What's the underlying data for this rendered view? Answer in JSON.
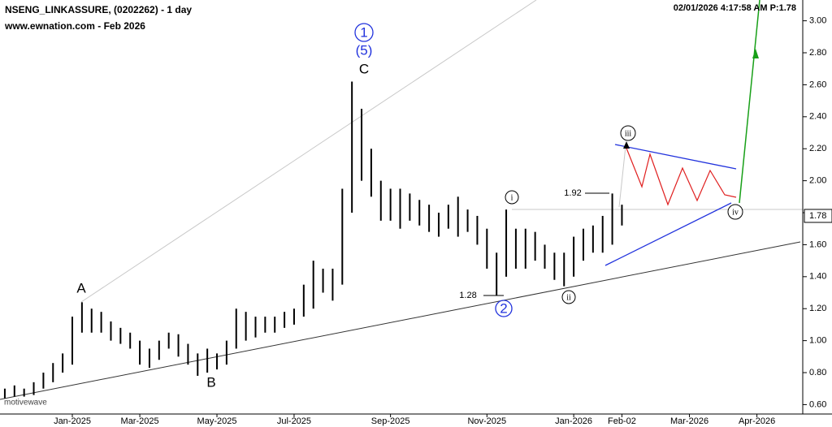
{
  "chart_data": {
    "type": "range-bar",
    "title": "NSENG_LINKASSURE, (0202262) - 1 day",
    "subtitle": "www.ewnation.com  - Feb 2026",
    "timestamp": "02/01/2026 4:17:58 AM  P:1.78",
    "watermark": "motivewave",
    "last_price": {
      "value": 1.78,
      "label": "1.78"
    },
    "categories": [
      null,
      null,
      null,
      null,
      null,
      null,
      null,
      "Jan-2025",
      null,
      null,
      null,
      null,
      null,
      null,
      "Mar-2025",
      null,
      null,
      null,
      null,
      null,
      null,
      null,
      "May-2025",
      null,
      null,
      null,
      null,
      null,
      null,
      null,
      "Jul-2025",
      null,
      null,
      null,
      null,
      null,
      null,
      null,
      null,
      null,
      "Sep-2025",
      null,
      null,
      null,
      null,
      null,
      null,
      null,
      null,
      null,
      "Nov-2025",
      null,
      null,
      null,
      null,
      null,
      null,
      null,
      null,
      "Jan-2026",
      null,
      null,
      null,
      null,
      "Feb-02",
      null,
      null,
      null,
      null,
      null,
      null,
      "Mar-2026",
      null,
      null,
      null,
      null,
      null,
      null,
      "Apr-2026",
      null,
      null,
      null,
      null
    ],
    "high": [
      0.7,
      0.72,
      0.7,
      0.74,
      0.8,
      0.86,
      0.92,
      1.15,
      1.24,
      1.2,
      1.18,
      1.12,
      1.08,
      1.05,
      1.0,
      0.95,
      1.0,
      1.05,
      1.04,
      0.98,
      0.92,
      0.95,
      0.92,
      1.0,
      1.2,
      1.18,
      1.15,
      1.15,
      1.15,
      1.18,
      1.2,
      1.35,
      1.5,
      1.45,
      1.45,
      1.95,
      2.62,
      2.45,
      2.2,
      2.0,
      1.95,
      1.95,
      1.92,
      1.88,
      1.85,
      1.8,
      1.85,
      1.9,
      1.82,
      1.78,
      1.7,
      1.55,
      1.82,
      1.7,
      1.7,
      1.68,
      1.6,
      1.55,
      1.55,
      1.65,
      1.7,
      1.72,
      1.78,
      1.92,
      1.85,
      null,
      null,
      null,
      null,
      null,
      null,
      null,
      null,
      null,
      null,
      null,
      null,
      null,
      null,
      null,
      null,
      null,
      null
    ],
    "low": [
      0.64,
      0.65,
      0.65,
      0.66,
      0.7,
      0.74,
      0.8,
      0.85,
      1.05,
      1.05,
      1.05,
      1.0,
      0.98,
      0.95,
      0.85,
      0.83,
      0.88,
      0.95,
      0.9,
      0.85,
      0.78,
      0.8,
      0.82,
      0.85,
      0.95,
      1.0,
      1.02,
      1.05,
      1.05,
      1.08,
      1.1,
      1.15,
      1.2,
      1.3,
      1.25,
      1.35,
      1.8,
      2.0,
      1.9,
      1.75,
      1.75,
      1.7,
      1.75,
      1.72,
      1.68,
      1.65,
      1.7,
      1.65,
      1.68,
      1.6,
      1.45,
      1.28,
      1.4,
      1.45,
      1.45,
      1.5,
      1.45,
      1.38,
      1.34,
      1.4,
      1.5,
      1.55,
      1.55,
      1.6,
      1.72,
      null,
      null,
      null,
      null,
      null,
      null,
      null,
      null,
      null,
      null,
      null,
      null,
      null,
      null,
      null,
      null,
      null,
      null
    ],
    "color": "#000000",
    "ylim": [
      0.46,
      3.13
    ],
    "yticks": [
      {
        "value": 0.6,
        "label": "0.60"
      },
      {
        "value": 0.8,
        "label": "0.80"
      },
      {
        "value": 1.0,
        "label": "1.00"
      },
      {
        "value": 1.2,
        "label": "1.20"
      },
      {
        "value": 1.4,
        "label": "1.40"
      },
      {
        "value": 1.6,
        "label": "1.60"
      },
      {
        "value": 1.8,
        "label": "1.80"
      },
      {
        "value": 2.0,
        "label": "2.00"
      },
      {
        "value": 2.2,
        "label": "2.20"
      },
      {
        "value": 2.4,
        "label": "2.40"
      },
      {
        "value": 2.6,
        "label": "2.60"
      },
      {
        "value": 2.8,
        "label": "2.80"
      },
      {
        "value": 3.0,
        "label": "3.00"
      }
    ],
    "annotations": [
      "A",
      "B",
      "C",
      "1",
      "(5)",
      "2",
      "i",
      "ii",
      "iii",
      "iv",
      "1.92",
      "1.28"
    ]
  }
}
